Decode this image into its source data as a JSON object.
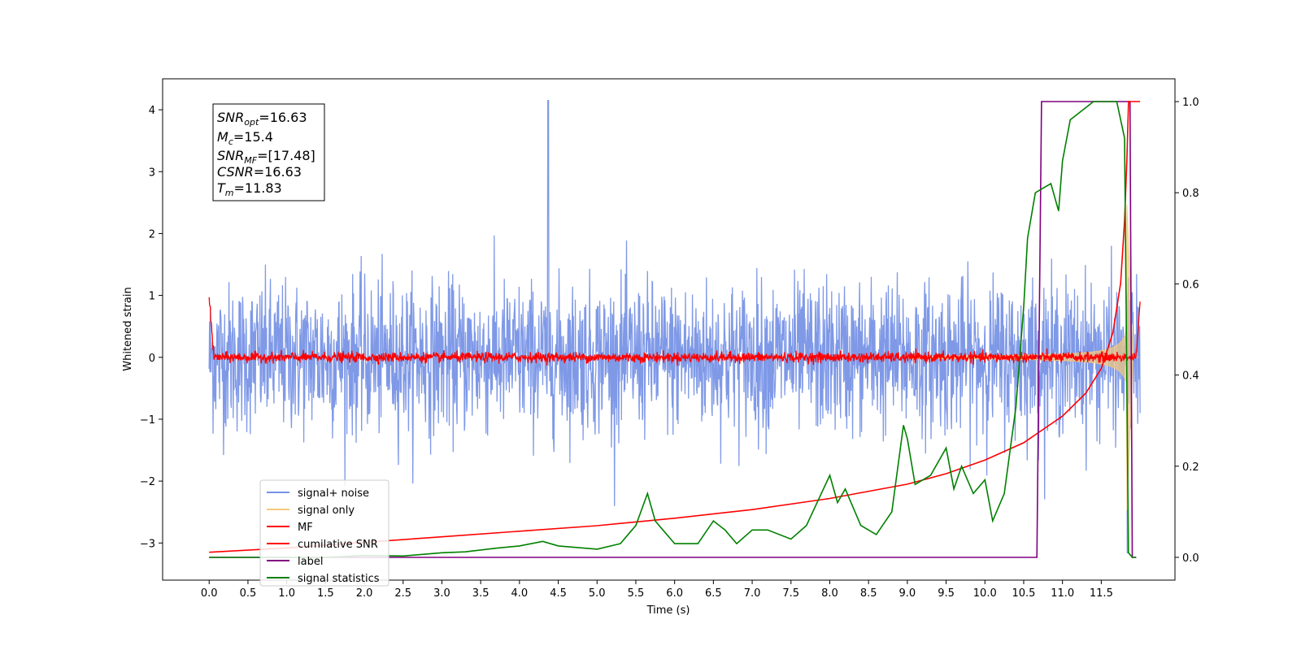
{
  "chart_data": {
    "type": "line",
    "title": "",
    "xlabel": "Time (s)",
    "ylabel": "Whitened strain",
    "xlim": [
      -0.6,
      12.45
    ],
    "ylim": [
      -3.6,
      4.5
    ],
    "y2lim": [
      -0.05,
      1.05
    ],
    "x_ticks": [
      "0.0",
      "0.5",
      "1.0",
      "1.5",
      "2.0",
      "2.5",
      "3.0",
      "3.5",
      "4.0",
      "4.5",
      "5.0",
      "5.5",
      "6.0",
      "6.5",
      "7.0",
      "7.5",
      "8.0",
      "8.5",
      "9.0",
      "9.5",
      "10.0",
      "10.5",
      "11.0",
      "11.5"
    ],
    "y_ticks": [
      "4",
      "3",
      "2",
      "1",
      "0",
      "−1",
      "−2",
      "−3"
    ],
    "y2_ticks": [
      "1.0",
      "0.8",
      "0.6",
      "0.4",
      "0.2",
      "0.0"
    ],
    "grid": false,
    "legend_position": "lower-left",
    "duration": 12.0,
    "annotation": {
      "snr_opt": "16.63",
      "mc": "15.4",
      "snr_mf": "[17.48]",
      "csnr": "16.63",
      "tm": "11.83"
    },
    "series": [
      {
        "name": "signal+ noise",
        "color": "#7893e6",
        "axis": "left",
        "noise_std": 0.6,
        "peak_value": 4.15,
        "peak_time": 4.37
      },
      {
        "name": "signal only",
        "color": "#f5c97a",
        "axis": "left",
        "chirp_end": 11.83,
        "max_amplitude": 2.5
      },
      {
        "name": "MF",
        "color": "#ff0000",
        "axis": "left",
        "noise_std": 0.04,
        "start_value": 1.0,
        "end_value": 0.9
      },
      {
        "name": "cumilative SNR",
        "color": "#ff0000",
        "axis": "left",
        "x": [
          0.0,
          1.0,
          2.0,
          3.0,
          4.0,
          5.0,
          6.0,
          7.0,
          8.0,
          9.0,
          9.5,
          10.0,
          10.5,
          11.0,
          11.3,
          11.5,
          11.65,
          11.75,
          11.8,
          11.83
        ],
        "values": [
          -3.15,
          -3.08,
          -2.99,
          -2.9,
          -2.81,
          -2.72,
          -2.6,
          -2.46,
          -2.28,
          -2.05,
          -1.88,
          -1.66,
          -1.38,
          -0.95,
          -0.58,
          -0.18,
          0.4,
          1.2,
          2.2,
          3.2
        ]
      },
      {
        "name": "label",
        "color": "#800080",
        "axis": "right",
        "x": [
          0.0,
          10.67,
          10.73,
          11.87,
          11.9,
          11.95
        ],
        "values": [
          0.0,
          0.0,
          1.0,
          1.0,
          0.0,
          0.0
        ]
      },
      {
        "name": "signal statistics",
        "color": "#008000",
        "axis": "right",
        "x": [
          0.0,
          0.5,
          1.0,
          1.5,
          2.0,
          2.5,
          3.0,
          3.3,
          3.7,
          4.0,
          4.3,
          4.5,
          5.0,
          5.3,
          5.5,
          5.65,
          5.75,
          5.85,
          6.0,
          6.3,
          6.5,
          6.65,
          6.8,
          7.0,
          7.2,
          7.5,
          7.7,
          8.0,
          8.1,
          8.2,
          8.4,
          8.6,
          8.8,
          8.95,
          9.0,
          9.1,
          9.3,
          9.5,
          9.6,
          9.7,
          9.85,
          10.0,
          10.1,
          10.25,
          10.4,
          10.5,
          10.55,
          10.65,
          10.75,
          10.85,
          10.95,
          11.0,
          11.1,
          11.25,
          11.4,
          11.5,
          11.6,
          11.7,
          11.8,
          11.85,
          11.9,
          11.95
        ],
        "values": [
          0.0,
          0.0,
          0.0,
          0.0,
          0.004,
          0.003,
          0.01,
          0.012,
          0.02,
          0.025,
          0.035,
          0.025,
          0.018,
          0.03,
          0.07,
          0.14,
          0.08,
          0.06,
          0.03,
          0.03,
          0.08,
          0.06,
          0.03,
          0.06,
          0.06,
          0.04,
          0.07,
          0.18,
          0.12,
          0.15,
          0.07,
          0.05,
          0.1,
          0.29,
          0.26,
          0.16,
          0.18,
          0.24,
          0.15,
          0.2,
          0.14,
          0.17,
          0.08,
          0.14,
          0.33,
          0.55,
          0.7,
          0.8,
          0.81,
          0.82,
          0.76,
          0.87,
          0.96,
          0.98,
          1.0,
          1.0,
          1.0,
          1.0,
          0.92,
          0.01,
          0.0,
          0.0
        ]
      }
    ]
  }
}
